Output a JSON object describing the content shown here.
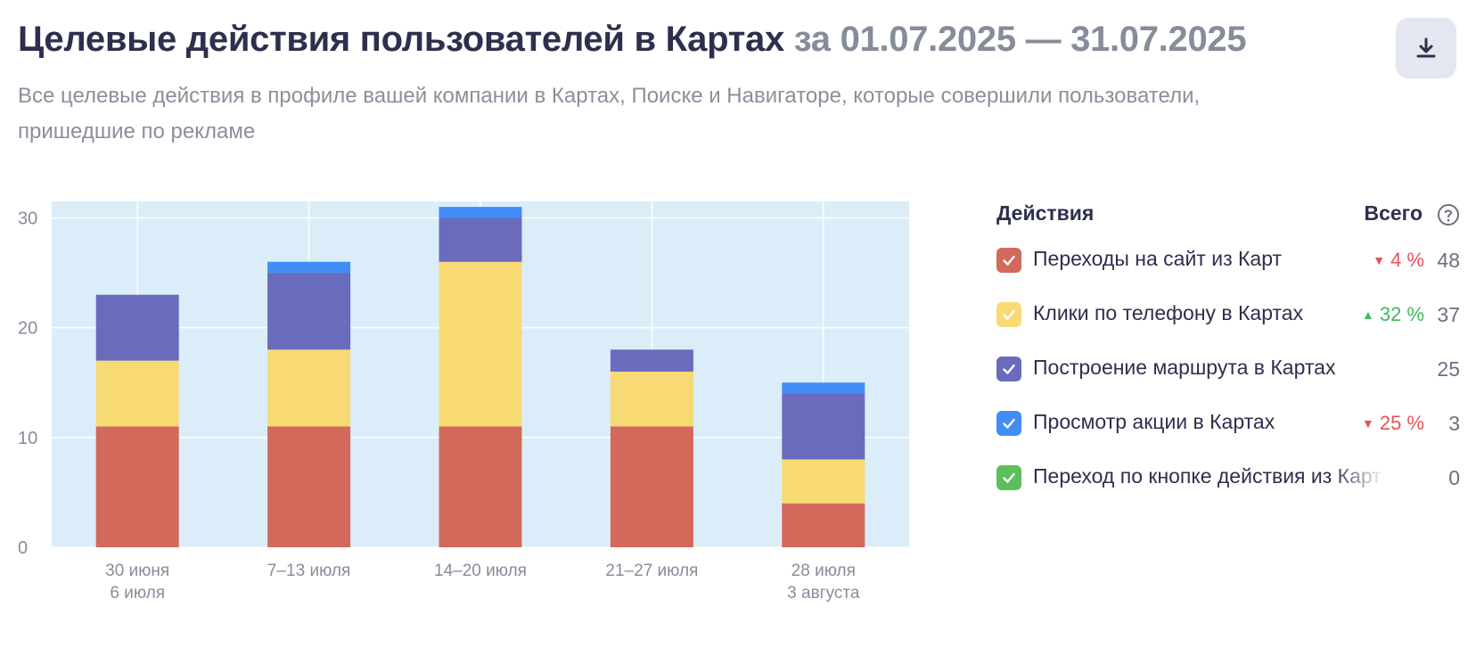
{
  "header": {
    "title": "Целевые действия пользователей в Картах",
    "period": "за 01.07.2025 — 31.07.2025",
    "subtitle": "Все целевые действия в профиле вашей компании в Картах, Поиске и Навигаторе, которые совершили пользователи, пришедшие по рекламе",
    "download_icon": "download-icon"
  },
  "legend": {
    "header_actions": "Действия",
    "header_total": "Всего",
    "help_icon": "question-circle-icon",
    "items": [
      {
        "label": "Переходы на сайт из Карт",
        "color": "#d2695a",
        "checked": true,
        "change": "4 %",
        "trend": "down",
        "total": "48"
      },
      {
        "label": "Клики по телефону в Картах",
        "color": "#f8da75",
        "checked": true,
        "change": "32 %",
        "trend": "up",
        "total": "37"
      },
      {
        "label": "Построение маршрута в Картах",
        "color": "#6a6bbd",
        "checked": true,
        "change": "",
        "trend": "",
        "total": "25"
      },
      {
        "label": "Просмотр акции в Картах",
        "color": "#428cf6",
        "checked": true,
        "change": "25 %",
        "trend": "down",
        "total": "3"
      },
      {
        "label": "Переход по кнопке действия из Карт",
        "color": "#5cbf5c",
        "checked": true,
        "change": "",
        "trend": "",
        "total": "0"
      }
    ]
  },
  "chart_data": {
    "type": "bar",
    "stacked": true,
    "categories": [
      [
        "30 июня",
        "6 июля"
      ],
      [
        "7–13 июля"
      ],
      [
        "14–20 июля"
      ],
      [
        "21–27 июля"
      ],
      [
        "28 июля",
        "3 августа"
      ]
    ],
    "yticks": [
      "0",
      "10",
      "20",
      "30"
    ],
    "ylim": [
      0,
      31.5
    ],
    "grid": true,
    "plot_background": "#dbedf9",
    "series": [
      {
        "name": "Переходы на сайт из Карт",
        "color": "#d2695a",
        "values": [
          11,
          11,
          11,
          11,
          4
        ]
      },
      {
        "name": "Клики по телефону в Картах",
        "color": "#f8da75",
        "values": [
          6,
          7,
          15,
          5,
          4
        ]
      },
      {
        "name": "Построение маршрута в Картах",
        "color": "#6a6bbd",
        "values": [
          6,
          7,
          4,
          2,
          6
        ]
      },
      {
        "name": "Просмотр акции в Картах",
        "color": "#428cf6",
        "values": [
          0,
          1,
          1,
          0,
          1
        ]
      },
      {
        "name": "Переход по кнопке действия из Карт",
        "color": "#5cbf5c",
        "values": [
          0,
          0,
          0,
          0,
          0
        ]
      }
    ]
  }
}
